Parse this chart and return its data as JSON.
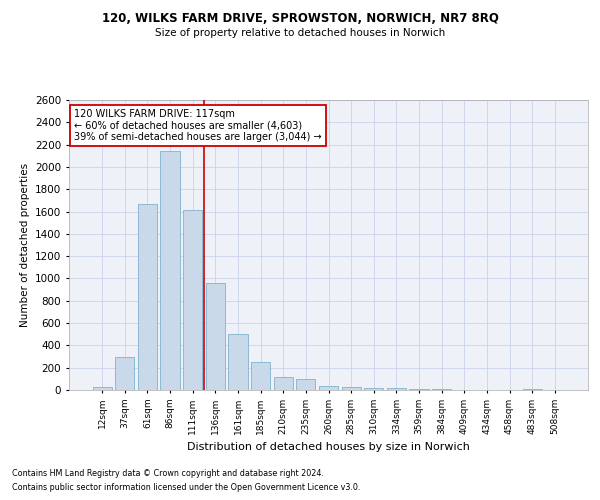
{
  "title_line1": "120, WILKS FARM DRIVE, SPROWSTON, NORWICH, NR7 8RQ",
  "title_line2": "Size of property relative to detached houses in Norwich",
  "xlabel": "Distribution of detached houses by size in Norwich",
  "ylabel": "Number of detached properties",
  "annotation_line1": "120 WILKS FARM DRIVE: 117sqm",
  "annotation_line2": "← 60% of detached houses are smaller (4,603)",
  "annotation_line3": "39% of semi-detached houses are larger (3,044) →",
  "categories": [
    "12sqm",
    "37sqm",
    "61sqm",
    "86sqm",
    "111sqm",
    "136sqm",
    "161sqm",
    "185sqm",
    "210sqm",
    "235sqm",
    "260sqm",
    "285sqm",
    "310sqm",
    "334sqm",
    "359sqm",
    "384sqm",
    "409sqm",
    "434sqm",
    "458sqm",
    "483sqm",
    "508sqm"
  ],
  "values": [
    25,
    295,
    1670,
    2140,
    1610,
    960,
    505,
    250,
    115,
    95,
    40,
    30,
    20,
    15,
    8,
    7,
    4,
    4,
    0,
    8,
    4
  ],
  "bar_color": "#c9d9ea",
  "bar_edge_color": "#6ea8c8",
  "vline_color": "#cc0000",
  "vline_position": 4.5,
  "annotation_box_edge_color": "#cc0000",
  "annotation_box_face_color": "white",
  "ylim": [
    0,
    2600
  ],
  "yticks": [
    0,
    200,
    400,
    600,
    800,
    1000,
    1200,
    1400,
    1600,
    1800,
    2000,
    2200,
    2400,
    2600
  ],
  "grid_color": "#c8d4e8",
  "background_color": "#eef2f8",
  "footer_line1": "Contains HM Land Registry data © Crown copyright and database right 2024.",
  "footer_line2": "Contains public sector information licensed under the Open Government Licence v3.0."
}
